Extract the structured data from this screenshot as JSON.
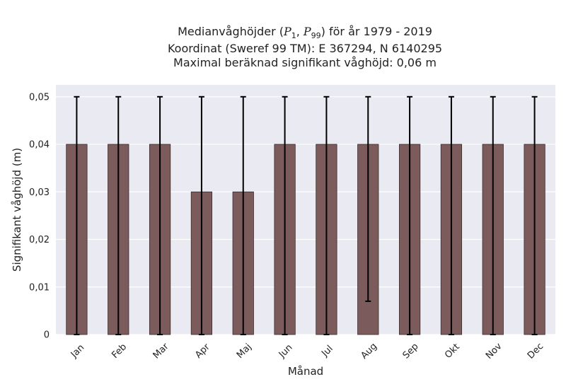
{
  "chart_data": {
    "type": "bar",
    "title_parts": {
      "line1_prefix": "Medianvåghöjder (",
      "p_low_symbol": "P",
      "p_low_sub": "1",
      "separator": ", ",
      "p_high_symbol": "P",
      "p_high_sub": "99",
      "line1_suffix": ") för år 1979 - 2019"
    },
    "subtitle_lines": [
      "Koordinat (Sweref 99 TM): E 367294, N 6140295",
      "Maximal beräknad signifikant våghöjd: 0,06 m"
    ],
    "xlabel": "Månad",
    "ylabel": "Signifikant våghöjd (m)",
    "categories": [
      "Jan",
      "Feb",
      "Mar",
      "Apr",
      "Maj",
      "Jun",
      "Jul",
      "Aug",
      "Sep",
      "Okt",
      "Nov",
      "Dec"
    ],
    "values": [
      0.04,
      0.04,
      0.04,
      0.03,
      0.03,
      0.04,
      0.04,
      0.04,
      0.04,
      0.04,
      0.04,
      0.04
    ],
    "error_low": [
      0,
      0,
      0,
      0,
      0,
      0,
      0,
      0.007,
      0,
      0,
      0,
      0
    ],
    "error_high": [
      0.05,
      0.05,
      0.05,
      0.05,
      0.05,
      0.05,
      0.05,
      0.05,
      0.05,
      0.05,
      0.05,
      0.05
    ],
    "yticks": [
      0,
      0.01,
      0.02,
      0.03,
      0.04,
      0.05
    ],
    "ytick_labels": [
      "0",
      "0,01",
      "0,02",
      "0,03",
      "0,04",
      "0,05"
    ],
    "ylim": [
      0,
      0.0525
    ],
    "grid": true,
    "colors": {
      "bar": "#7b5b5b",
      "bar_edge": "#3a2a2a",
      "error": "#000000",
      "background": "#eaeaf2",
      "grid": "#ffffff"
    }
  }
}
